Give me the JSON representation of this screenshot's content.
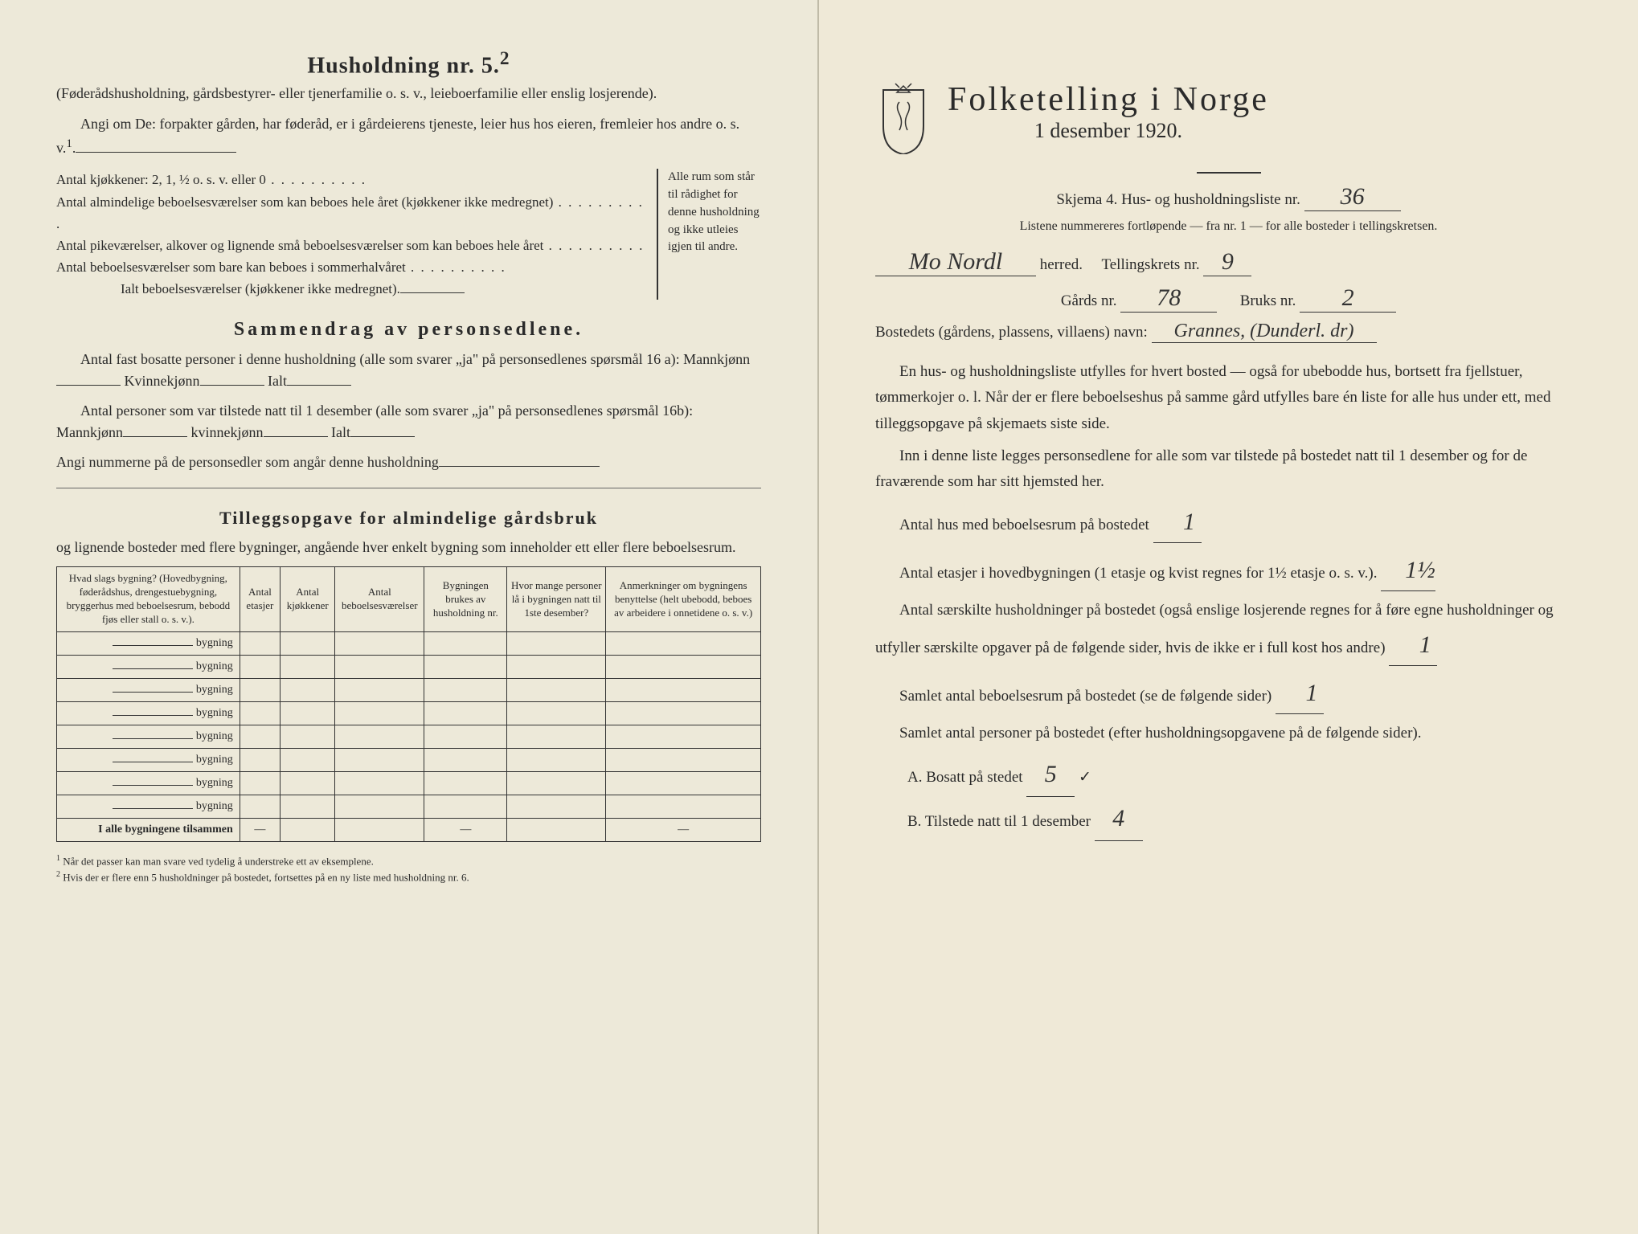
{
  "left": {
    "title": "Husholdning nr. 5.",
    "title_sup": "2",
    "sub1": "(Føderådshusholdning, gårdsbestyrer- eller tjenerfamilie o. s. v., leieboerfamilie eller enslig losjerende).",
    "angi": "Angi om De: forpakter gården, har føderåd, er i gårdeierens tjeneste, leier hus hos eieren, fremleier hos andre o. s. v.",
    "kjokk": "Antal kjøkkener: 2, 1, ½ o. s. v. eller 0",
    "bebo1": "Antal almindelige beboelsesværelser som kan beboes hele året (kjøkkener ikke medregnet)",
    "bebo2": "Antal pikeværelser, alkover og lignende små beboelsesværelser som kan beboes hele året",
    "bebo3": "Antal beboelsesværelser som bare kan beboes i sommerhalvåret",
    "ialt": "Ialt beboelsesværelser (kjøkkener ikke medregnet).",
    "brace_text": "Alle rum som står til rådighet for denne husholdning og ikke utleies igjen til andre.",
    "samm_head": "Sammendrag av personsedlene.",
    "samm1a": "Antal fast bosatte personer i denne husholdning (alle som svarer „ja\" på personsedlenes spørsmål 16 a): Mannkjønn",
    "samm1b": "Kvinnekjønn",
    "samm1c": "Ialt",
    "samm2a": "Antal personer som var tilstede natt til 1 desember (alle som svarer „ja\" på personsedlenes spørsmål 16b): Mannkjønn",
    "samm2b": "kvinnekjønn",
    "samm2c": "Ialt",
    "samm3": "Angi nummerne på de personsedler som angår denne husholdning",
    "till_head": "Tilleggsopgave for almindelige gårdsbruk",
    "till_sub": "og lignende bosteder med flere bygninger, angående hver enkelt bygning som inneholder ett eller flere beboelsesrum.",
    "table": {
      "cols": [
        "Hvad slags bygning?\n(Hovedbygning, føderådshus, drengestuebygning, bryggerhus med beboelsesrum, bebodd fjøs eller stall o. s. v.).",
        "Antal etasjer",
        "Antal kjøkkener",
        "Antal beboelsesværelser",
        "Bygningen brukes av husholdning nr.",
        "Hvor mange personer lå i bygningen natt til 1ste desember?",
        "Anmerkninger om bygningens benyttelse (helt ubebodd, beboes av arbeidere i onnetidene o. s. v.)"
      ],
      "row_label": "bygning",
      "rows": 8,
      "sum_row": "I alle bygningene tilsammen"
    },
    "fn1": "Når det passer kan man svare ved tydelig å understreke ett av eksemplene.",
    "fn2": "Hvis der er flere enn 5 husholdninger på bostedet, fortsettes på en ny liste med husholdning nr. 6."
  },
  "right": {
    "main_title": "Folketelling i Norge",
    "date": "1 desember 1920.",
    "skjema": "Skjema 4. Hus- og husholdningsliste nr.",
    "skjema_val": "36",
    "listene": "Listene nummereres fortløpende — fra nr. 1 — for alle bosteder i tellingskretsen.",
    "herred_val": "Mo Nordl",
    "herred_label": "herred.",
    "tkrets": "Tellingskrets nr.",
    "tkrets_val": "9",
    "gards": "Gårds nr.",
    "gards_val": "78",
    "bruks": "Bruks nr.",
    "bruks_val": "2",
    "bostedets": "Bostedets (gårdens, plassens, villaens) navn:",
    "bostedets_val": "Grannes, (Dunderl. dr)",
    "p1": "En hus- og husholdningsliste utfylles for hvert bosted — også for ubebodde hus, bortsett fra fjellstuer, tømmerkojer o. l. Når der er flere beboelseshus på samme gård utfylles bare én liste for alle hus under ett, med tilleggsopgave på skjemaets siste side.",
    "p2": "Inn i denne liste legges personsedlene for alle som var tilstede på bostedet natt til 1 desember og for de fraværende som har sitt hjemsted her.",
    "q1": "Antal hus med beboelsesrum på bostedet",
    "q1_val": "1",
    "q2a": "Antal etasjer i hovedbygningen (1 etasje og kvist regnes for 1½ etasje o. s. v.).",
    "q2_val": "1½",
    "q3": "Antal særskilte husholdninger på bostedet (også enslige losjerende regnes for å føre egne husholdninger og utfyller særskilte opgaver på de følgende sider, hvis de ikke er i full kost hos andre)",
    "q3_val": "1",
    "q4": "Samlet antal beboelsesrum på bostedet (se de følgende sider)",
    "q4_val": "1",
    "q5": "Samlet antal personer på bostedet (efter husholdningsopgavene på de følgende sider).",
    "qA": "A.  Bosatt på stedet",
    "qA_val": "5",
    "qB": "B.  Tilstede natt til 1 desember",
    "qB_val": "4"
  },
  "colors": {
    "paper": "#ede9d9",
    "ink": "#2a2a2a",
    "hand": "#333333"
  }
}
